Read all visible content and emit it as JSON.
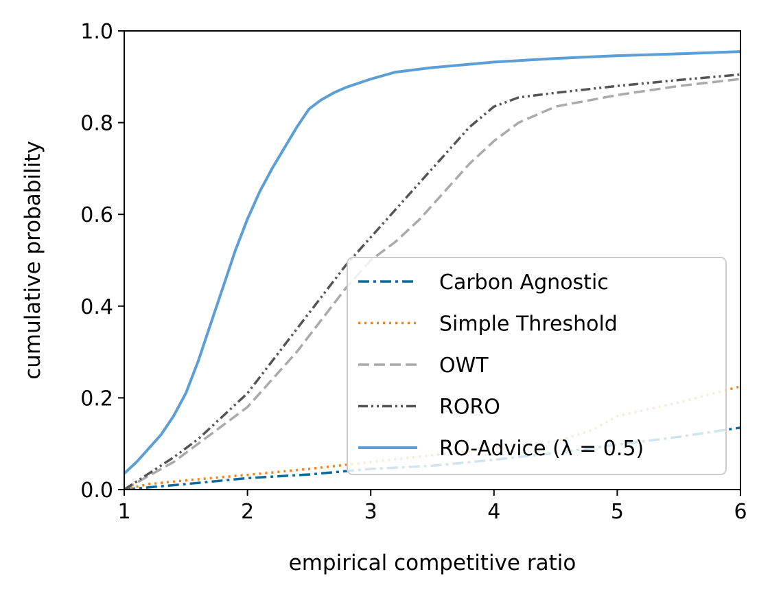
{
  "chart_data": {
    "type": "line",
    "xlabel": "empirical competitive ratio",
    "ylabel": "cumulative probability",
    "xlim": [
      1,
      6
    ],
    "ylim": [
      0,
      1
    ],
    "xticks": [
      "1",
      "2",
      "3",
      "4",
      "5",
      "6"
    ],
    "yticks": [
      "0.0",
      "0.2",
      "0.4",
      "0.6",
      "0.8",
      "1.0"
    ],
    "grid": false,
    "legend_position": "lower-right",
    "series": [
      {
        "name": "Carbon Agnostic",
        "color": "#0a6aa1",
        "style": "dashdot",
        "x": [
          1.0,
          1.2,
          1.5,
          2.0,
          2.5,
          3.0,
          3.5,
          4.0,
          4.5,
          5.0,
          5.5,
          6.0
        ],
        "y": [
          0.0,
          0.005,
          0.012,
          0.025,
          0.033,
          0.045,
          0.052,
          0.065,
          0.08,
          0.098,
          0.115,
          0.135
        ]
      },
      {
        "name": "Simple Threshold",
        "color": "#ff7f0e",
        "style": "dotted",
        "x": [
          1.0,
          1.2,
          1.5,
          2.0,
          2.5,
          3.0,
          3.5,
          4.0,
          4.5,
          4.8,
          5.0,
          5.5,
          6.0
        ],
        "y": [
          0.0,
          0.012,
          0.02,
          0.032,
          0.045,
          0.06,
          0.075,
          0.09,
          0.105,
          0.13,
          0.16,
          0.19,
          0.225
        ]
      },
      {
        "name": "OWT",
        "color": "#aaaaaa",
        "style": "dashed",
        "x": [
          1.0,
          1.2,
          1.4,
          1.6,
          1.8,
          2.0,
          2.2,
          2.4,
          2.6,
          2.8,
          3.0,
          3.2,
          3.4,
          3.6,
          3.8,
          4.0,
          4.2,
          4.5,
          5.0,
          5.5,
          6.0
        ],
        "y": [
          0.0,
          0.03,
          0.06,
          0.1,
          0.14,
          0.18,
          0.24,
          0.3,
          0.37,
          0.44,
          0.5,
          0.54,
          0.59,
          0.65,
          0.71,
          0.76,
          0.8,
          0.835,
          0.86,
          0.88,
          0.895
        ]
      },
      {
        "name": "RORO",
        "color": "#555555",
        "style": "dashdotdot",
        "x": [
          1.0,
          1.2,
          1.4,
          1.6,
          1.8,
          2.0,
          2.2,
          2.4,
          2.6,
          2.8,
          3.0,
          3.2,
          3.4,
          3.6,
          3.8,
          4.0,
          4.2,
          4.5,
          5.0,
          5.5,
          6.0
        ],
        "y": [
          0.0,
          0.035,
          0.07,
          0.11,
          0.16,
          0.21,
          0.28,
          0.35,
          0.42,
          0.49,
          0.55,
          0.61,
          0.67,
          0.73,
          0.79,
          0.835,
          0.855,
          0.865,
          0.88,
          0.893,
          0.905
        ]
      },
      {
        "name": "RO-Advice (λ = 0.5)",
        "color": "#5b9fd6",
        "style": "solid",
        "x": [
          1.0,
          1.1,
          1.2,
          1.3,
          1.4,
          1.5,
          1.6,
          1.7,
          1.8,
          1.9,
          2.0,
          2.1,
          2.2,
          2.3,
          2.4,
          2.5,
          2.6,
          2.7,
          2.8,
          3.0,
          3.2,
          3.5,
          4.0,
          4.5,
          5.0,
          5.5,
          6.0
        ],
        "y": [
          0.035,
          0.06,
          0.09,
          0.12,
          0.16,
          0.21,
          0.28,
          0.36,
          0.44,
          0.52,
          0.59,
          0.65,
          0.7,
          0.745,
          0.79,
          0.83,
          0.85,
          0.865,
          0.877,
          0.895,
          0.91,
          0.92,
          0.932,
          0.94,
          0.946,
          0.95,
          0.955
        ]
      }
    ]
  }
}
